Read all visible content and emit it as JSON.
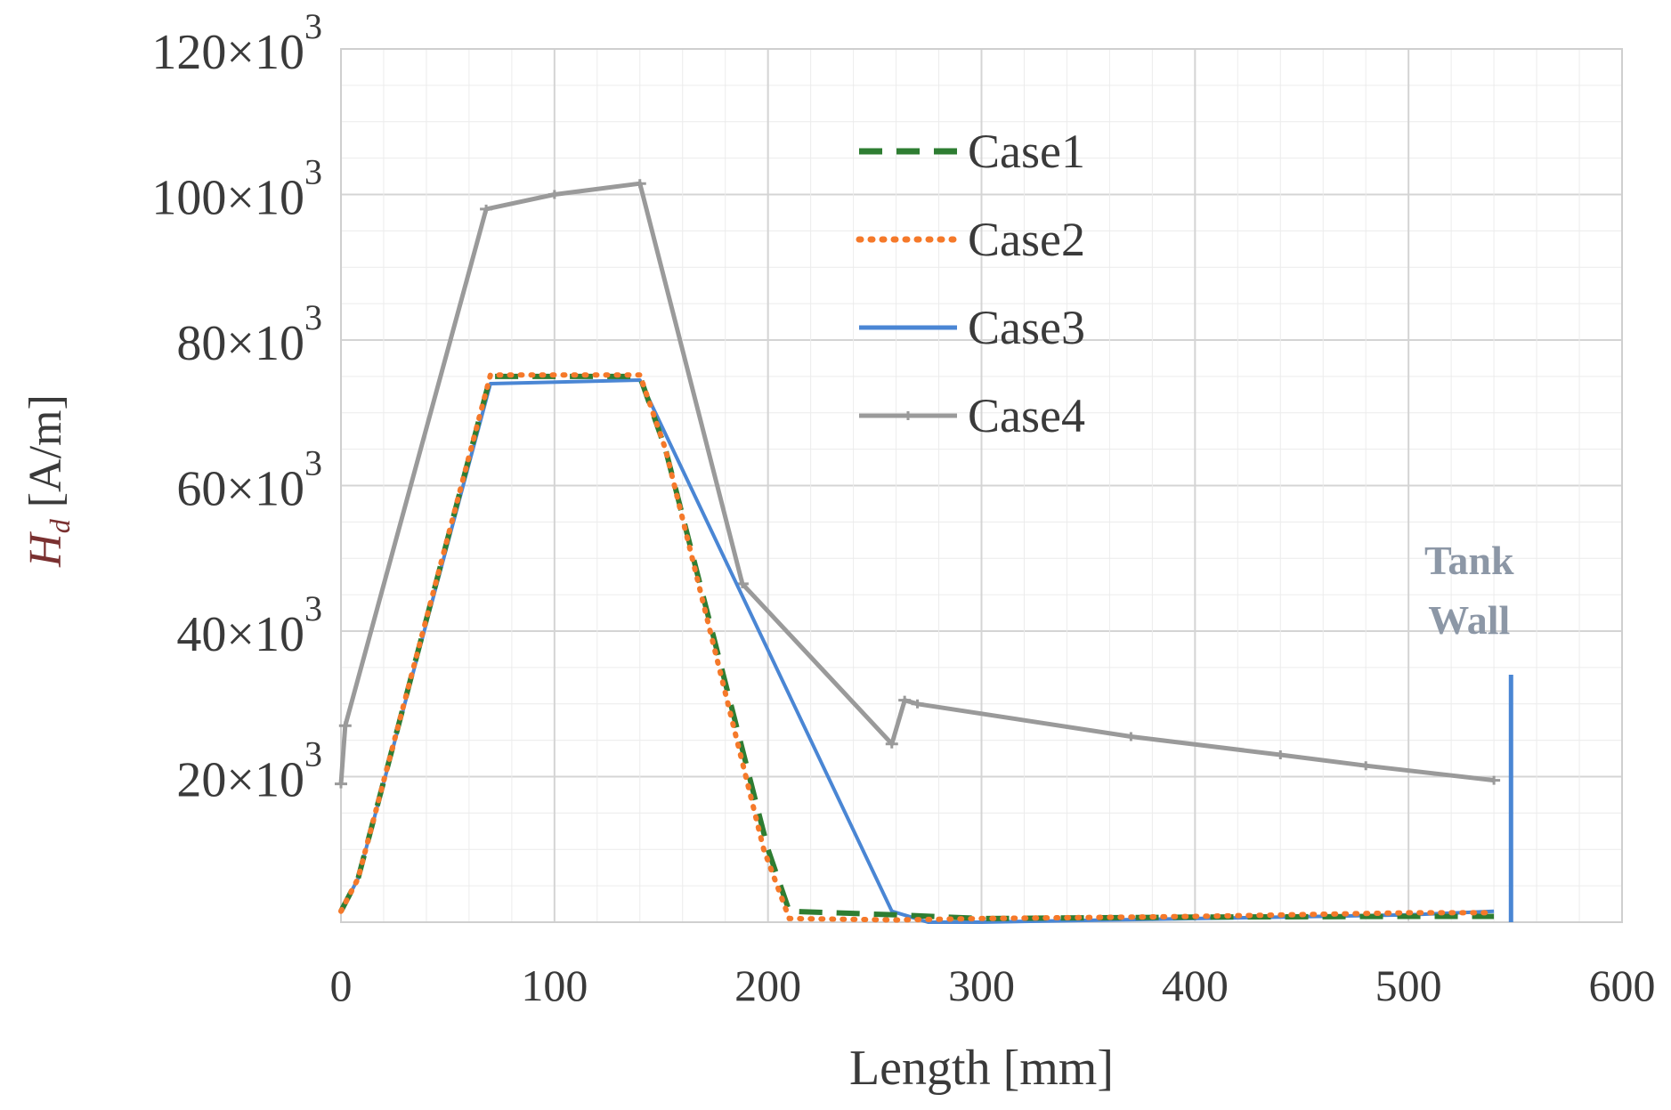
{
  "chart_data": {
    "type": "line",
    "title": "",
    "xlabel": "Length  [mm]",
    "ylabel_symbol": "H",
    "ylabel_subscript": "d",
    "ylabel_unit": " [A/m]",
    "xlim": [
      0,
      600
    ],
    "ylim": [
      0,
      120000
    ],
    "x_ticks": [
      0,
      100,
      200,
      300,
      400,
      500,
      600
    ],
    "x_tick_labels": [
      "0",
      "100",
      "200",
      "300",
      "400",
      "500",
      "600"
    ],
    "y_ticks": [
      20000,
      40000,
      60000,
      80000,
      100000,
      120000
    ],
    "y_tick_labels": [
      {
        "mantissa": "20",
        "times": "×",
        "base": "10",
        "exp": "3"
      },
      {
        "mantissa": "40",
        "times": "×",
        "base": "10",
        "exp": "3"
      },
      {
        "mantissa": "60",
        "times": "×",
        "base": "10",
        "exp": "3"
      },
      {
        "mantissa": "80",
        "times": "×",
        "base": "10",
        "exp": "3"
      },
      {
        "mantissa": "100",
        "times": "×",
        "base": "10",
        "exp": "3"
      },
      {
        "mantissa": "120",
        "times": "×",
        "base": "10",
        "exp": "3"
      }
    ],
    "grid": true,
    "minor_grid_step": 5000,
    "legend_position": "top-center",
    "series": [
      {
        "name": "Case1",
        "color": "#2e7d32",
        "style": "dashed",
        "points": [
          [
            0,
            1500
          ],
          [
            8,
            6000
          ],
          [
            70,
            75000
          ],
          [
            140,
            75000
          ],
          [
            152,
            65000
          ],
          [
            200,
            10000
          ],
          [
            210,
            1500
          ],
          [
            260,
            1000
          ],
          [
            300,
            500
          ],
          [
            400,
            700
          ],
          [
            500,
            800
          ],
          [
            540,
            800
          ]
        ]
      },
      {
        "name": "Case2",
        "color": "#f5792a",
        "style": "dotted",
        "points": [
          [
            0,
            1500
          ],
          [
            8,
            6000
          ],
          [
            70,
            75200
          ],
          [
            140,
            75200
          ],
          [
            152,
            65000
          ],
          [
            198,
            10000
          ],
          [
            210,
            500
          ],
          [
            260,
            300
          ],
          [
            300,
            500
          ],
          [
            400,
            800
          ],
          [
            500,
            1300
          ],
          [
            540,
            1300
          ]
        ]
      },
      {
        "name": "Case3",
        "color": "#4a86d4",
        "style": "solid",
        "points": [
          [
            0,
            1500
          ],
          [
            8,
            6000
          ],
          [
            70,
            74000
          ],
          [
            140,
            74500
          ],
          [
            258,
            1500
          ],
          [
            275,
            0
          ],
          [
            300,
            0
          ],
          [
            400,
            500
          ],
          [
            500,
            1000
          ],
          [
            540,
            1500
          ]
        ]
      },
      {
        "name": "Case4",
        "color": "#9a9a9a",
        "style": "solid-markers",
        "points": [
          [
            0,
            19000
          ],
          [
            2,
            27000
          ],
          [
            68,
            98000
          ],
          [
            100,
            100000
          ],
          [
            140,
            101500
          ],
          [
            188,
            46500
          ],
          [
            258,
            24500
          ],
          [
            264,
            30500
          ],
          [
            270,
            30000
          ],
          [
            370,
            25500
          ],
          [
            440,
            23000
          ],
          [
            480,
            21500
          ],
          [
            540,
            19500
          ]
        ]
      }
    ],
    "annotation": {
      "line1": "Tank",
      "line2": "Wall",
      "color": "#8c97a6",
      "line_color": "#4a86d4",
      "x": 548,
      "y_from": 0,
      "y_to": 34000
    }
  }
}
